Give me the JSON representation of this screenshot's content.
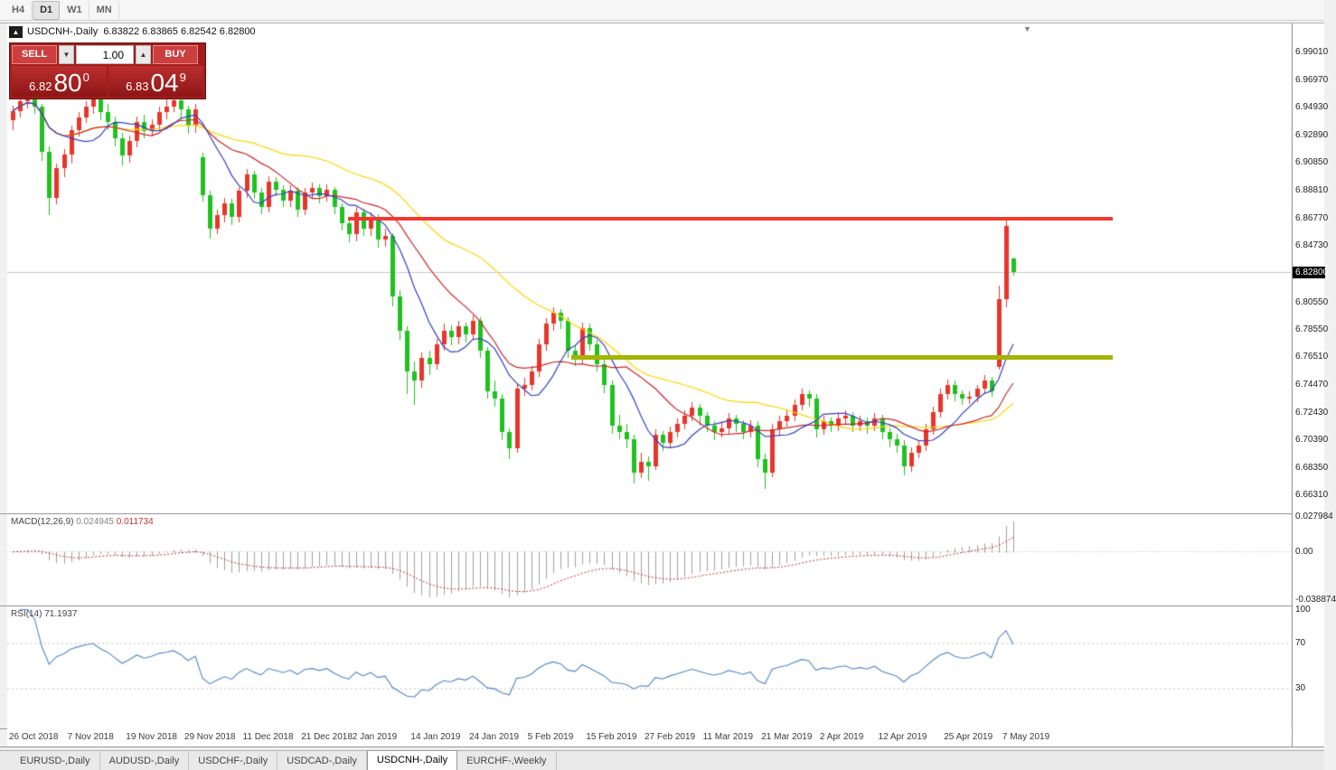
{
  "toolbar": {
    "periods": [
      "H4",
      "D1",
      "W1",
      "MN"
    ],
    "active_period": "D1"
  },
  "chart_header": {
    "collapse_icon": "▲",
    "title": "USDCNH-,Daily  6.83822 6.83865 6.82542 6.82800",
    "shift_icon": "▼"
  },
  "trade_panel": {
    "sell_label": "SELL",
    "buy_label": "BUY",
    "volume": "1.00",
    "dropdown_icon": "▼",
    "increase_icon": "▲",
    "sell_price": {
      "base": "6.82",
      "pips": "80",
      "point": "0"
    },
    "buy_price": {
      "base": "6.83",
      "pips": "04",
      "point": "9"
    }
  },
  "indicator_labels": {
    "macd_name": "MACD(12,26,9)",
    "macd_value": "0.024945",
    "macd_signal": "0.011734",
    "rsi_name": "RSI(14)",
    "rsi_value": "71.1937"
  },
  "price_scale": {
    "ticks": [
      "6.99010",
      "6.96970",
      "6.94930",
      "6.92890",
      "6.90850",
      "6.88810",
      "6.86770",
      "6.84730",
      "6.80550",
      "6.78550",
      "6.76510",
      "6.74470",
      "6.72430",
      "6.70390",
      "6.68350",
      "6.66310"
    ],
    "current_price_tag": "6.82800",
    "macd_scale": [
      "0.027984",
      "0.00",
      "-0.038874"
    ],
    "rsi_scale": [
      "100",
      "70",
      "30"
    ]
  },
  "date_axis": [
    {
      "label": "26 Oct 2018",
      "i": 0
    },
    {
      "label": "7 Nov 2018",
      "i": 8
    },
    {
      "label": "19 Nov 2018",
      "i": 16
    },
    {
      "label": "29 Nov 2018",
      "i": 24
    },
    {
      "label": "11 Dec 2018",
      "i": 32
    },
    {
      "label": "21 Dec 2018",
      "i": 40
    },
    {
      "label": "2 Jan 2019",
      "i": 47
    },
    {
      "label": "14 Jan 2019",
      "i": 55
    },
    {
      "label": "24 Jan 2019",
      "i": 63
    },
    {
      "label": "5 Feb 2019",
      "i": 71
    },
    {
      "label": "15 Feb 2019",
      "i": 79
    },
    {
      "label": "27 Feb 2019",
      "i": 87
    },
    {
      "label": "11 Mar 2019",
      "i": 95
    },
    {
      "label": "21 Mar 2019",
      "i": 103
    },
    {
      "label": "2 Apr 2019",
      "i": 111
    },
    {
      "label": "12 Apr 2019",
      "i": 119
    },
    {
      "label": "25 Apr 2019",
      "i": 128
    },
    {
      "label": "7 May 2019",
      "i": 136
    }
  ],
  "tabs": [
    {
      "label": "EURUSD-,Daily",
      "active": false
    },
    {
      "label": "AUDUSD-,Daily",
      "active": false
    },
    {
      "label": "USDCHF-,Daily",
      "active": false
    },
    {
      "label": "USDCAD-,Daily",
      "active": false
    },
    {
      "label": "USDCNH-,Daily",
      "active": true
    },
    {
      "label": "EURCHF-,Weekly",
      "active": false
    }
  ],
  "chart_data": {
    "type": "candlestick",
    "symbol": "USDCNH-",
    "timeframe": "Daily",
    "quote": {
      "open": 6.83822,
      "high": 6.83865,
      "low": 6.82542,
      "close": 6.828
    },
    "colors": {
      "bull": "#e8362c",
      "bear": "#1fc11f",
      "ma_fast": "#3340c4",
      "ma_mid": "#cf2525",
      "ma_slow": "#ffd400",
      "macd_hist": "#a0a0a0",
      "macd_signal": "#c83232",
      "rsi_line": "#4f86c6",
      "resistance": "#f0392e",
      "support": "#a3b400",
      "current_price_line": "#c8c8c8"
    },
    "y_range": [
      6.652,
      7.0055
    ],
    "levels": {
      "resistance": 6.8677,
      "support": 6.7651,
      "current": 6.828
    },
    "moving_average_periods": [
      8,
      16,
      34
    ],
    "macd_params": [
      12,
      26,
      9
    ],
    "rsi_period": 14,
    "candles": [
      [
        "2018-10-26",
        6.94,
        6.951,
        6.933,
        6.947
      ],
      [
        "2018-10-29",
        6.947,
        6.958,
        6.942,
        6.954
      ],
      [
        "2018-10-30",
        6.954,
        6.962,
        6.949,
        6.958
      ],
      [
        "2018-10-31",
        6.958,
        6.964,
        6.945,
        6.95
      ],
      [
        "2018-11-01",
        6.95,
        6.952,
        6.91,
        6.917
      ],
      [
        "2018-11-02",
        6.917,
        6.921,
        6.87,
        6.883
      ],
      [
        "2018-11-05",
        6.883,
        6.908,
        6.878,
        6.905
      ],
      [
        "2018-11-06",
        6.905,
        6.919,
        6.898,
        6.915
      ],
      [
        "2018-11-07",
        6.915,
        6.936,
        6.908,
        6.933
      ],
      [
        "2018-11-08",
        6.933,
        6.946,
        6.928,
        6.942
      ],
      [
        "2018-11-09",
        6.942,
        6.954,
        6.938,
        6.95
      ],
      [
        "2018-11-12",
        6.95,
        6.96,
        6.945,
        6.956
      ],
      [
        "2018-11-13",
        6.956,
        6.959,
        6.94,
        6.946
      ],
      [
        "2018-11-14",
        6.946,
        6.952,
        6.933,
        6.939
      ],
      [
        "2018-11-15",
        6.939,
        6.943,
        6.921,
        6.927
      ],
      [
        "2018-11-16",
        6.927,
        6.931,
        6.907,
        6.914
      ],
      [
        "2018-11-19",
        6.914,
        6.929,
        6.909,
        6.925
      ],
      [
        "2018-11-20",
        6.925,
        6.943,
        6.92,
        6.939
      ],
      [
        "2018-11-21",
        6.939,
        6.944,
        6.927,
        6.932
      ],
      [
        "2018-11-22",
        6.932,
        6.941,
        6.928,
        6.937
      ],
      [
        "2018-11-23",
        6.937,
        6.95,
        6.932,
        6.946
      ],
      [
        "2018-11-26",
        6.946,
        6.956,
        6.941,
        6.95
      ],
      [
        "2018-11-27",
        6.95,
        6.959,
        6.946,
        6.955
      ],
      [
        "2018-11-28",
        6.955,
        6.958,
        6.941,
        6.948
      ],
      [
        "2018-11-29",
        6.948,
        6.951,
        6.93,
        6.936
      ],
      [
        "2018-11-30",
        6.936,
        6.952,
        6.931,
        6.948
      ],
      [
        "2018-12-03",
        6.913,
        6.916,
        6.88,
        6.885
      ],
      [
        "2018-12-04",
        6.885,
        6.888,
        6.853,
        6.86
      ],
      [
        "2018-12-05",
        6.86,
        6.874,
        6.856,
        6.87
      ],
      [
        "2018-12-06",
        6.87,
        6.883,
        6.865,
        6.879
      ],
      [
        "2018-12-07",
        6.879,
        6.882,
        6.863,
        6.869
      ],
      [
        "2018-12-10",
        6.869,
        6.891,
        6.865,
        6.888
      ],
      [
        "2018-12-11",
        6.888,
        6.904,
        6.883,
        6.9
      ],
      [
        "2018-12-12",
        6.9,
        6.903,
        6.882,
        6.887
      ],
      [
        "2018-12-13",
        6.887,
        6.89,
        6.871,
        6.876
      ],
      [
        "2018-12-14",
        6.876,
        6.899,
        6.872,
        6.895
      ],
      [
        "2018-12-17",
        6.895,
        6.898,
        6.884,
        6.889
      ],
      [
        "2018-12-18",
        6.889,
        6.892,
        6.876,
        6.881
      ],
      [
        "2018-12-19",
        6.881,
        6.892,
        6.876,
        6.888
      ],
      [
        "2018-12-20",
        6.888,
        6.891,
        6.869,
        6.874
      ],
      [
        "2018-12-21",
        6.874,
        6.89,
        6.87,
        6.887
      ],
      [
        "2018-12-24",
        6.887,
        6.894,
        6.882,
        6.89
      ],
      [
        "2018-12-25",
        6.89,
        6.893,
        6.879,
        6.884
      ],
      [
        "2018-12-26",
        6.884,
        6.893,
        6.88,
        6.889
      ],
      [
        "2018-12-27",
        6.889,
        6.891,
        6.871,
        6.876
      ],
      [
        "2018-12-28",
        6.876,
        6.879,
        6.859,
        6.864
      ],
      [
        "2018-12-31",
        6.864,
        6.868,
        6.85,
        6.856
      ],
      [
        "2019-01-02",
        6.856,
        6.876,
        6.851,
        6.872
      ],
      [
        "2019-01-03",
        6.872,
        6.875,
        6.855,
        6.86
      ],
      [
        "2019-01-04",
        6.86,
        6.872,
        6.855,
        6.868
      ],
      [
        "2019-01-07",
        6.868,
        6.871,
        6.846,
        6.852
      ],
      [
        "2019-01-08",
        6.852,
        6.86,
        6.847,
        6.855
      ],
      [
        "2019-01-09",
        6.855,
        6.857,
        6.803,
        6.81
      ],
      [
        "2019-01-10",
        6.81,
        6.815,
        6.778,
        6.785
      ],
      [
        "2019-01-11",
        6.785,
        6.788,
        6.738,
        6.755
      ],
      [
        "2019-01-14",
        6.755,
        6.762,
        6.73,
        6.748
      ],
      [
        "2019-01-15",
        6.748,
        6.769,
        6.743,
        6.765
      ],
      [
        "2019-01-16",
        6.765,
        6.77,
        6.752,
        6.76
      ],
      [
        "2019-01-17",
        6.76,
        6.779,
        6.756,
        6.775
      ],
      [
        "2019-01-18",
        6.775,
        6.79,
        6.77,
        6.785
      ],
      [
        "2019-01-21",
        6.785,
        6.789,
        6.774,
        6.78
      ],
      [
        "2019-01-22",
        6.78,
        6.792,
        6.775,
        6.788
      ],
      [
        "2019-01-23",
        6.788,
        6.791,
        6.776,
        6.782
      ],
      [
        "2019-01-24",
        6.782,
        6.796,
        6.778,
        6.792
      ],
      [
        "2019-01-25",
        6.792,
        6.795,
        6.765,
        6.77
      ],
      [
        "2019-01-28",
        6.77,
        6.773,
        6.735,
        6.74
      ],
      [
        "2019-01-29",
        6.74,
        6.748,
        6.729,
        6.735
      ],
      [
        "2019-01-30",
        6.735,
        6.738,
        6.704,
        6.71
      ],
      [
        "2019-01-31",
        6.71,
        6.713,
        6.69,
        6.698
      ],
      [
        "2019-02-01",
        6.698,
        6.746,
        6.695,
        6.742
      ],
      [
        "2019-02-04",
        6.742,
        6.75,
        6.737,
        6.745
      ],
      [
        "2019-02-05",
        6.745,
        6.759,
        6.741,
        6.755
      ],
      [
        "2019-02-06",
        6.755,
        6.779,
        6.751,
        6.775
      ],
      [
        "2019-02-07",
        6.775,
        6.794,
        6.77,
        6.79
      ],
      [
        "2019-02-08",
        6.79,
        6.802,
        6.785,
        6.798
      ],
      [
        "2019-02-11",
        6.798,
        6.801,
        6.786,
        6.792
      ],
      [
        "2019-02-12",
        6.792,
        6.795,
        6.765,
        6.77
      ],
      [
        "2019-02-13",
        6.77,
        6.774,
        6.759,
        6.765
      ],
      [
        "2019-02-14",
        6.765,
        6.791,
        6.761,
        6.787
      ],
      [
        "2019-02-15",
        6.787,
        6.79,
        6.77,
        6.775
      ],
      [
        "2019-02-18",
        6.775,
        6.778,
        6.755,
        6.76
      ],
      [
        "2019-02-19",
        6.76,
        6.764,
        6.739,
        6.745
      ],
      [
        "2019-02-20",
        6.745,
        6.748,
        6.709,
        6.715
      ],
      [
        "2019-02-21",
        6.715,
        6.723,
        6.705,
        6.71
      ],
      [
        "2019-02-22",
        6.71,
        6.716,
        6.698,
        6.705
      ],
      [
        "2019-02-25",
        6.705,
        6.708,
        6.672,
        6.68
      ],
      [
        "2019-02-26",
        6.68,
        6.695,
        6.676,
        6.688
      ],
      [
        "2019-02-27",
        6.688,
        6.692,
        6.674,
        6.685
      ],
      [
        "2019-02-28",
        6.685,
        6.712,
        6.682,
        6.708
      ],
      [
        "2019-03-01",
        6.708,
        6.711,
        6.696,
        6.702
      ],
      [
        "2019-03-04",
        6.702,
        6.714,
        6.698,
        6.71
      ],
      [
        "2019-03-05",
        6.71,
        6.72,
        6.706,
        6.716
      ],
      [
        "2019-03-06",
        6.716,
        6.726,
        6.712,
        6.722
      ],
      [
        "2019-03-07",
        6.722,
        6.732,
        6.718,
        6.728
      ],
      [
        "2019-03-08",
        6.728,
        6.731,
        6.715,
        6.722
      ],
      [
        "2019-03-11",
        6.722,
        6.725,
        6.71,
        6.715
      ],
      [
        "2019-03-12",
        6.715,
        6.718,
        6.704,
        6.71
      ],
      [
        "2019-03-13",
        6.71,
        6.718,
        6.706,
        6.713
      ],
      [
        "2019-03-14",
        6.713,
        6.724,
        6.709,
        6.72
      ],
      [
        "2019-03-15",
        6.72,
        6.723,
        6.71,
        6.716
      ],
      [
        "2019-03-18",
        6.716,
        6.719,
        6.705,
        6.71
      ],
      [
        "2019-03-19",
        6.71,
        6.719,
        6.706,
        6.715
      ],
      [
        "2019-03-20",
        6.715,
        6.718,
        6.684,
        6.69
      ],
      [
        "2019-03-21",
        6.69,
        6.694,
        6.668,
        6.68
      ],
      [
        "2019-03-22",
        6.68,
        6.716,
        6.677,
        6.712
      ],
      [
        "2019-03-25",
        6.712,
        6.722,
        6.708,
        6.718
      ],
      [
        "2019-03-26",
        6.718,
        6.726,
        6.714,
        6.722
      ],
      [
        "2019-03-27",
        6.722,
        6.734,
        6.718,
        6.73
      ],
      [
        "2019-03-28",
        6.73,
        6.742,
        6.726,
        6.738
      ],
      [
        "2019-03-29",
        6.738,
        6.741,
        6.729,
        6.735
      ],
      [
        "2019-04-01",
        6.735,
        6.738,
        6.706,
        6.712
      ],
      [
        "2019-04-02",
        6.712,
        6.722,
        6.708,
        6.718
      ],
      [
        "2019-04-03",
        6.718,
        6.721,
        6.71,
        6.715
      ],
      [
        "2019-04-04",
        6.715,
        6.724,
        6.711,
        6.72
      ],
      [
        "2019-04-05",
        6.72,
        6.726,
        6.716,
        6.722
      ],
      [
        "2019-04-08",
        6.722,
        6.725,
        6.71,
        6.715
      ],
      [
        "2019-04-09",
        6.715,
        6.722,
        6.711,
        6.718
      ],
      [
        "2019-04-10",
        6.718,
        6.721,
        6.709,
        6.715
      ],
      [
        "2019-04-11",
        6.715,
        6.724,
        6.711,
        6.72
      ],
      [
        "2019-04-12",
        6.72,
        6.723,
        6.705,
        6.71
      ],
      [
        "2019-04-15",
        6.71,
        6.713,
        6.699,
        6.705
      ],
      [
        "2019-04-16",
        6.705,
        6.709,
        6.695,
        6.7
      ],
      [
        "2019-04-17",
        6.7,
        6.704,
        6.678,
        6.685
      ],
      [
        "2019-04-18",
        6.685,
        6.699,
        6.681,
        6.695
      ],
      [
        "2019-04-19",
        6.695,
        6.704,
        6.691,
        6.7
      ],
      [
        "2019-04-22",
        6.7,
        6.716,
        6.696,
        6.712
      ],
      [
        "2019-04-23",
        6.712,
        6.729,
        6.708,
        6.725
      ],
      [
        "2019-04-24",
        6.725,
        6.742,
        6.721,
        6.738
      ],
      [
        "2019-04-25",
        6.738,
        6.749,
        6.734,
        6.745
      ],
      [
        "2019-04-26",
        6.745,
        6.748,
        6.733,
        6.738
      ],
      [
        "2019-04-29",
        6.738,
        6.741,
        6.73,
        6.735
      ],
      [
        "2019-04-30",
        6.735,
        6.74,
        6.731,
        6.736
      ],
      [
        "2019-05-01",
        6.736,
        6.745,
        6.732,
        6.742
      ],
      [
        "2019-05-02",
        6.742,
        6.752,
        6.738,
        6.748
      ],
      [
        "2019-05-03",
        6.748,
        6.751,
        6.736,
        6.74
      ],
      [
        "2019-05-06",
        6.758,
        6.818,
        6.756,
        6.808
      ],
      [
        "2019-05-07",
        6.808,
        6.867,
        6.802,
        6.862
      ],
      [
        "2019-05-08",
        6.83822,
        6.83865,
        6.82542,
        6.828
      ]
    ]
  }
}
